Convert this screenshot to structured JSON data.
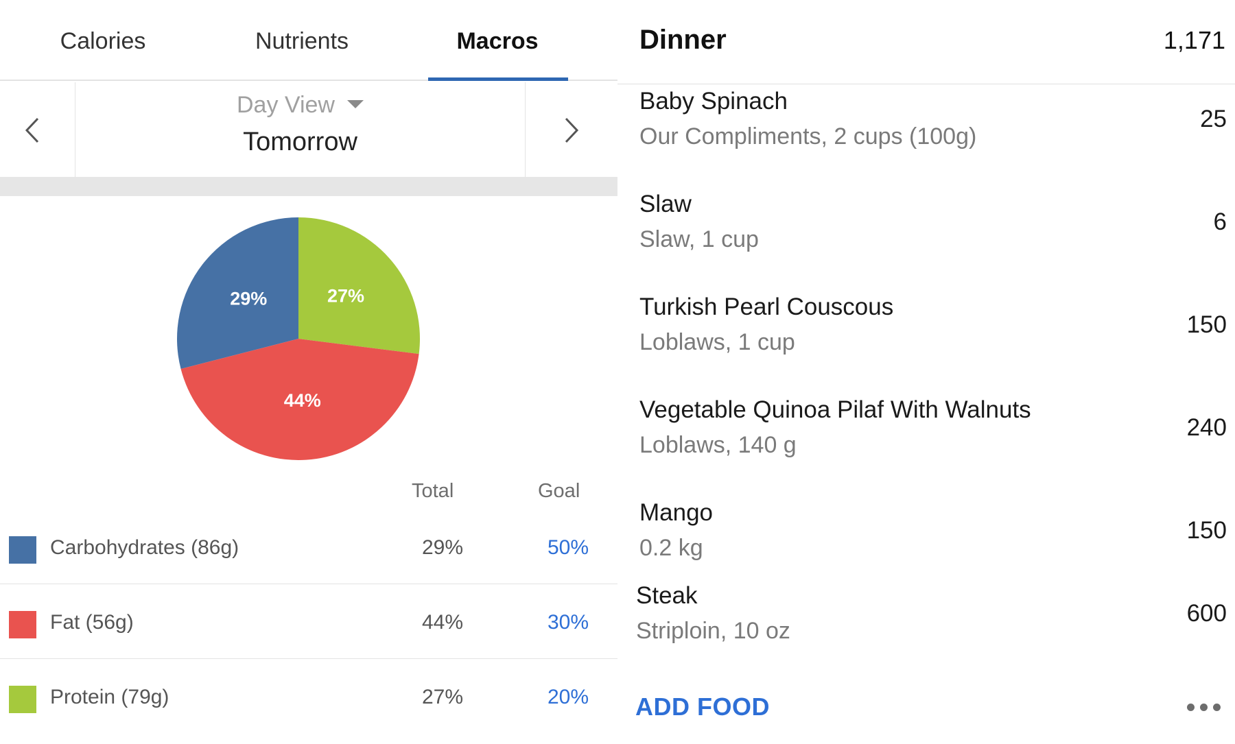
{
  "tabs": [
    {
      "label": "Calories",
      "active": false
    },
    {
      "label": "Nutrients",
      "active": false
    },
    {
      "label": "Macros",
      "active": true
    }
  ],
  "day_selector": {
    "view_label": "Day View",
    "date_label": "Tomorrow"
  },
  "chart_data": {
    "type": "pie",
    "slices": [
      {
        "label": "Carbohydrates",
        "value": 29,
        "display": "29%",
        "color": "#4671a5"
      },
      {
        "label": "Protein",
        "value": 27,
        "display": "27%",
        "color": "#a5c93d"
      },
      {
        "label": "Fat",
        "value": 44,
        "display": "44%",
        "color": "#e9534f"
      }
    ]
  },
  "table": {
    "total_header": "Total",
    "goal_header": "Goal",
    "rows": [
      {
        "name": "Carbohydrates (86g)",
        "total": "29%",
        "goal": "50%",
        "color": "#4671a5"
      },
      {
        "name": "Fat (56g)",
        "total": "44%",
        "goal": "30%",
        "color": "#e9534f"
      },
      {
        "name": "Protein (79g)",
        "total": "27%",
        "goal": "20%",
        "color": "#a5c93d"
      }
    ]
  },
  "meal": {
    "title": "Dinner",
    "total": "1,171",
    "foods": [
      {
        "name": "Baby Spinach",
        "desc": "Our Compliments, 2 cups (100g)",
        "calories": "25"
      },
      {
        "name": "Slaw",
        "desc": "Slaw, 1 cup",
        "calories": "6"
      },
      {
        "name": "Turkish Pearl Couscous",
        "desc": "Loblaws, 1 cup",
        "calories": "150"
      },
      {
        "name": "Vegetable Quinoa Pilaf With Walnuts",
        "desc": "Loblaws, 140 g",
        "calories": "240"
      },
      {
        "name": "Mango",
        "desc": "0.2 kg",
        "calories": "150"
      },
      {
        "name": "Steak",
        "desc": "Striploin, 10 oz",
        "calories": "600"
      }
    ],
    "add_food_label": "ADD FOOD",
    "more_icon": "more-horizontal-icon"
  }
}
